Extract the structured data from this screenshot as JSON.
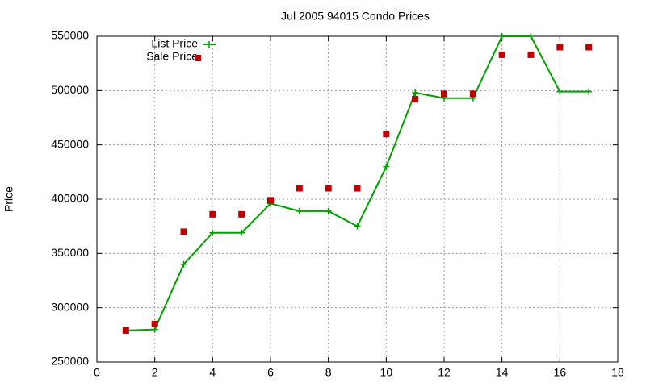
{
  "chart_data": {
    "type": "line",
    "title": "Jul 2005 94015 Condo Prices",
    "y_label": "Price",
    "x": [
      1,
      2,
      3,
      4,
      5,
      6,
      7,
      8,
      9,
      10,
      11,
      12,
      13,
      14,
      15,
      16,
      17
    ],
    "series": [
      {
        "name": "List Price",
        "color": "#00a000",
        "style": "linespoints",
        "values": [
          279000,
          280000,
          340000,
          369000,
          369000,
          396000,
          389000,
          389000,
          375000,
          430000,
          498000,
          493000,
          493000,
          550000,
          550000,
          499000,
          499000
        ]
      },
      {
        "name": "Sale Price",
        "color": "#c00000",
        "style": "points",
        "values": [
          279000,
          285000,
          370000,
          386000,
          386000,
          399000,
          410000,
          410000,
          410000,
          460000,
          492000,
          497000,
          497000,
          533000,
          533000,
          540000,
          540000
        ]
      }
    ],
    "xlim": [
      0,
      18
    ],
    "xticks": [
      0,
      2,
      4,
      6,
      8,
      10,
      12,
      14,
      16,
      18
    ],
    "ylim": [
      250000,
      550000
    ],
    "yticks": [
      250000,
      300000,
      350000,
      400000,
      450000,
      500000,
      550000
    ],
    "grid": true,
    "legend": "top-left"
  }
}
